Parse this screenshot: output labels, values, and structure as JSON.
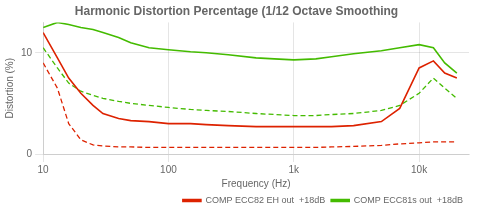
{
  "chart_data": {
    "type": "line",
    "title": "Harmonic Distortion Percentage (1/12 Octave Smoothing",
    "x_label": "Frequency (Hz)",
    "y_label": "Distortion (%)",
    "log": "x",
    "grid": true,
    "legend": "bottom",
    "xlim": [
      10,
      25000
    ],
    "ylim": [
      0,
      13
    ],
    "xticks": [
      10,
      100,
      {
        "value": 1000,
        "label": "1k"
      },
      {
        "value": 10000,
        "label": "10k"
      }
    ],
    "yticks": [
      0,
      10
    ],
    "x": [
      10,
      13,
      16,
      20,
      25,
      30,
      40,
      50,
      70,
      100,
      150,
      200,
      300,
      500,
      700,
      1000,
      1500,
      2000,
      3000,
      5000,
      7000,
      10000,
      13000,
      16000,
      20000
    ],
    "series": [
      {
        "name": "COMP ECC82 EH out  +18dB",
        "color": "#dd2200",
        "line_style": "solid",
        "values": [
          12,
          9.5,
          7.5,
          6.0,
          4.8,
          4.0,
          3.5,
          3.3,
          3.2,
          3.0,
          3.0,
          2.9,
          2.8,
          2.7,
          2.7,
          2.7,
          2.7,
          2.7,
          2.8,
          3.2,
          4.5,
          8.5,
          9.2,
          8.0,
          7.5
        ]
      },
      {
        "color": "#dd2200",
        "line_style": "dashed",
        "values": [
          9.0,
          6.5,
          3.0,
          1.4,
          0.9,
          0.8,
          0.7,
          0.7,
          0.65,
          0.65,
          0.65,
          0.65,
          0.65,
          0.65,
          0.65,
          0.65,
          0.65,
          0.7,
          0.75,
          0.85,
          1.0,
          1.1,
          1.2,
          1.2,
          1.2
        ]
      },
      {
        "name": "COMP ECC81s out  +18dB",
        "color": "#44bb00",
        "line_style": "solid",
        "values": [
          12.5,
          13.0,
          12.8,
          12.5,
          12.3,
          12.0,
          11.5,
          11.0,
          10.5,
          10.3,
          10.1,
          10.0,
          9.8,
          9.5,
          9.4,
          9.3,
          9.4,
          9.6,
          9.9,
          10.2,
          10.5,
          10.8,
          10.5,
          9.0,
          8.0
        ]
      },
      {
        "color": "#44bb00",
        "line_style": "dashed",
        "values": [
          10.5,
          8.5,
          7.0,
          6.2,
          5.8,
          5.5,
          5.2,
          5.0,
          4.8,
          4.6,
          4.4,
          4.3,
          4.2,
          4.0,
          3.9,
          3.8,
          3.8,
          3.9,
          4.0,
          4.3,
          4.8,
          6.0,
          7.5,
          6.5,
          5.5
        ]
      }
    ]
  }
}
